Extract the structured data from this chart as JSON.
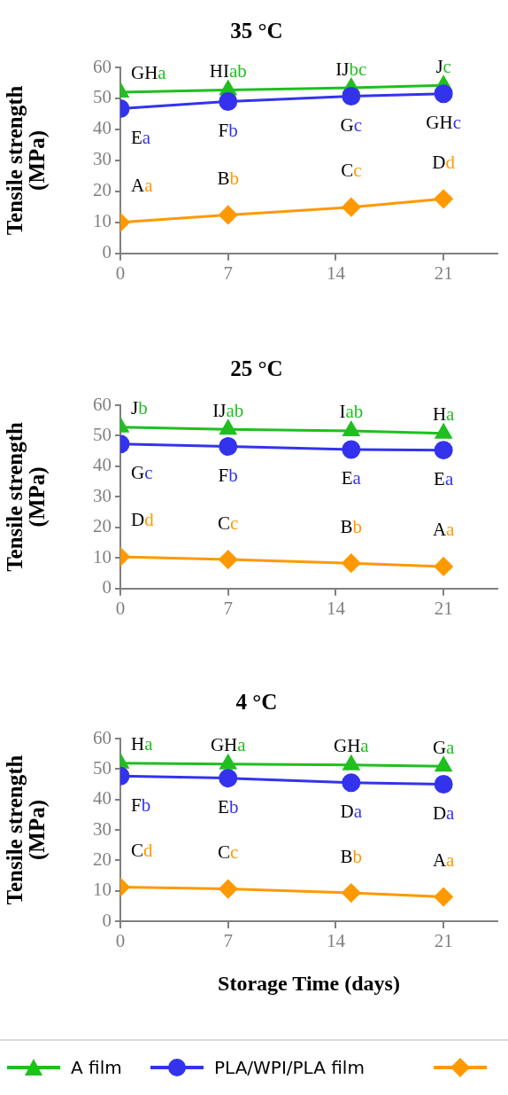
{
  "chart_data": [
    {
      "type": "line",
      "title": "35 °C",
      "ylabel": "Tensile strength (MPa)",
      "x": [
        0,
        7,
        15,
        21
      ],
      "xlim": [
        0,
        24.5
      ],
      "xticks": [
        0,
        7,
        14,
        21
      ],
      "ylim": [
        0,
        60
      ],
      "yticks": [
        0,
        10,
        20,
        30,
        40,
        50,
        60
      ],
      "grid": false,
      "series": [
        {
          "color": "#1fbf1f",
          "marker": "triangle",
          "values": [
            52,
            52.7,
            53.4,
            54.2
          ],
          "value_labels": [
            "GHa",
            "HIab",
            "IJbc",
            "Jc"
          ]
        },
        {
          "color": "#3333ee",
          "marker": "circle",
          "values": [
            46.7,
            49,
            50.7,
            51.5
          ],
          "value_labels": [
            "Ea",
            "Fb",
            "Gc",
            "GHc"
          ]
        },
        {
          "color": "#ff9900",
          "marker": "diamond",
          "values": [
            10,
            12.4,
            14.9,
            17.6
          ],
          "value_labels": [
            "Aa",
            "Bb",
            "Cc",
            "Dd"
          ]
        }
      ]
    },
    {
      "type": "line",
      "title": "25 °C",
      "ylabel": "Tensile strength (MPa)",
      "x": [
        0,
        7,
        15,
        21
      ],
      "xlim": [
        0,
        24.5
      ],
      "xticks": [
        0,
        7,
        14,
        21
      ],
      "ylim": [
        0,
        60
      ],
      "yticks": [
        0,
        10,
        20,
        30,
        40,
        50,
        60
      ],
      "grid": false,
      "series": [
        {
          "color": "#1fbf1f",
          "marker": "triangle",
          "values": [
            52.8,
            52.1,
            51.6,
            50.8
          ],
          "value_labels": [
            "Jb",
            "IJab",
            "Iab",
            "Ha"
          ]
        },
        {
          "color": "#3333ee",
          "marker": "circle",
          "values": [
            47.3,
            46.5,
            45.5,
            45.3
          ],
          "value_labels": [
            "Gc",
            "Fb",
            "Ea",
            "Ea"
          ]
        },
        {
          "color": "#ff9900",
          "marker": "diamond",
          "values": [
            10.4,
            9.5,
            8.3,
            7.2
          ],
          "value_labels": [
            "Dd",
            "Cc",
            "Bb",
            "Aa"
          ]
        }
      ]
    },
    {
      "type": "line",
      "title": "4 °C",
      "ylabel": "Tensile strength (MPa)",
      "xlabel": "Storage Time (days)",
      "x": [
        0,
        7,
        15,
        21
      ],
      "xlim": [
        0,
        24.5
      ],
      "xticks": [
        0,
        7,
        14,
        21
      ],
      "ylim": [
        0,
        60
      ],
      "yticks": [
        0,
        10,
        20,
        30,
        40,
        50,
        60
      ],
      "grid": false,
      "legend": "bottom",
      "series": [
        {
          "name": "A film",
          "color": "#1fbf1f",
          "marker": "triangle",
          "values": [
            51.9,
            51.6,
            51.3,
            50.9
          ],
          "value_labels": [
            "Ha",
            "GHa",
            "GHa",
            "Ga"
          ]
        },
        {
          "name": "PLA/WPI/PLA film",
          "color": "#3333ee",
          "marker": "circle",
          "values": [
            47.7,
            47,
            45.5,
            45
          ],
          "value_labels": [
            "Fb",
            "Eb",
            "Da",
            "Da"
          ]
        },
        {
          "color": "#ff9900",
          "marker": "diamond",
          "values": [
            11.2,
            10.6,
            9.3,
            8
          ],
          "value_labels": [
            "Cd",
            "Cc",
            "Bb",
            "Aa"
          ]
        }
      ]
    }
  ]
}
